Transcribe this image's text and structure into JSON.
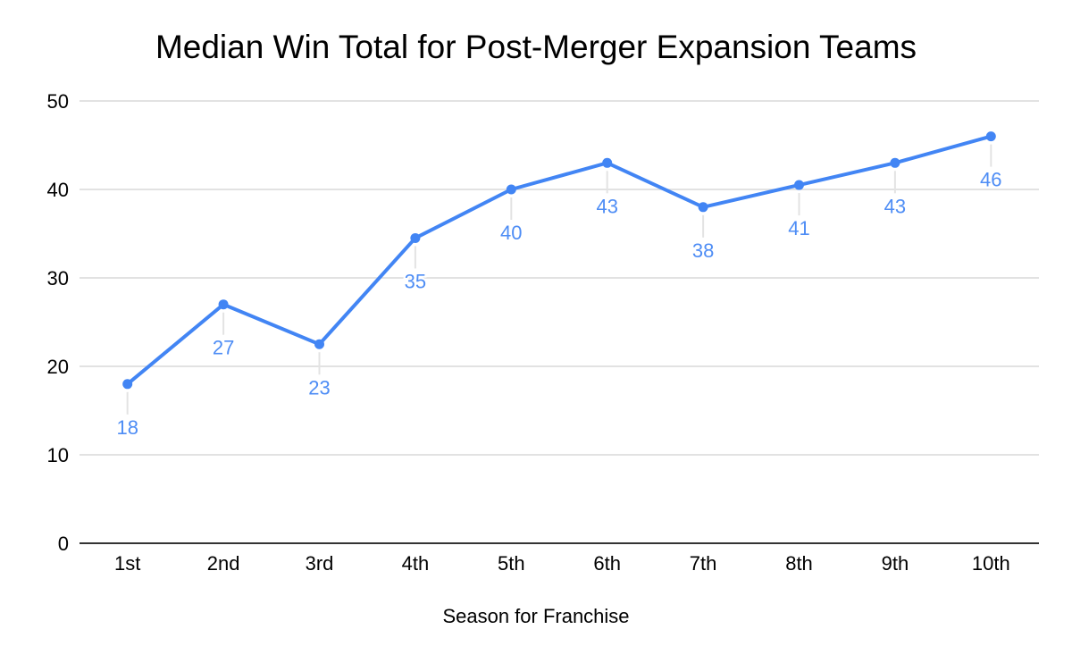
{
  "chart_data": {
    "type": "line",
    "title": "Median Win Total for Post-Merger Expansion Teams",
    "xlabel": "Season for Franchise",
    "ylabel": "",
    "categories": [
      "1st",
      "2nd",
      "3rd",
      "4th",
      "5th",
      "6th",
      "7th",
      "8th",
      "9th",
      "10th"
    ],
    "series": [
      {
        "values": [
          18,
          27,
          22.5,
          34.5,
          40,
          43,
          38,
          40.5,
          43,
          46
        ],
        "point_labels": [
          "18",
          "27",
          "23",
          "35",
          "40",
          "43",
          "38",
          "41",
          "43",
          "46"
        ]
      }
    ],
    "ylim": [
      0,
      50
    ],
    "yticks": [
      0,
      10,
      20,
      30,
      40,
      50
    ],
    "grid": true,
    "legend": "none",
    "colors": {
      "series": "#4285f4",
      "data_label": "#4e8df5",
      "gridline": "#d9d9d9",
      "baseline": "#333333",
      "leader_line": "#e3e3e3",
      "text": "#000000",
      "background": "#ffffff"
    }
  }
}
